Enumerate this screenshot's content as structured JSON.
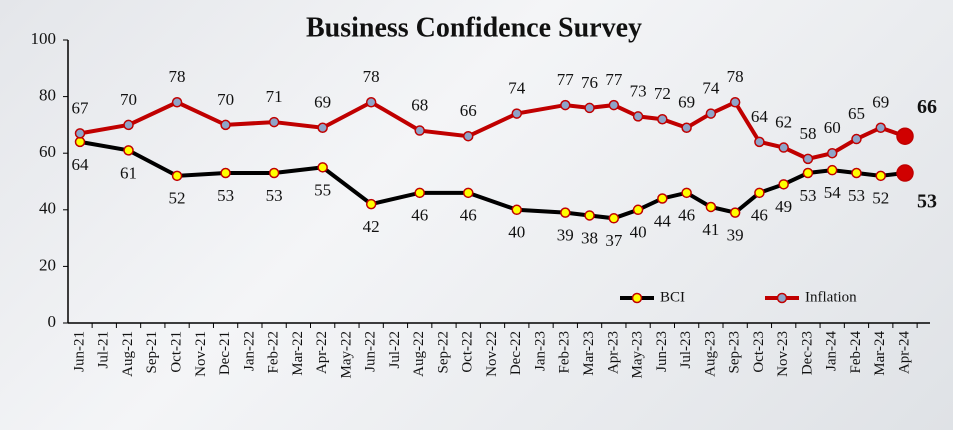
{
  "chart_data": {
    "type": "line",
    "title": "Business Confidence Survey",
    "xticks": [
      "Jun-21",
      "Jul-21",
      "Aug-21",
      "Sep-21",
      "Oct-21",
      "Nov-21",
      "Dec-21",
      "Jan-22",
      "Feb-22",
      "Mar-22",
      "Apr-22",
      "May-22",
      "Jun-22",
      "Jul-22",
      "Aug-22",
      "Sep-22",
      "Oct-22",
      "Nov-22",
      "Dec-22",
      "Jan-23",
      "Feb-23",
      "Mar-23",
      "Apr-23",
      "May-23",
      "Jun-23",
      "Jul-23",
      "Aug-23",
      "Sep-23",
      "Oct-23",
      "Nov-23",
      "Dec-23",
      "Jan-24",
      "Feb-24",
      "Mar-24",
      "Apr-24"
    ],
    "x": [
      "Jun-21",
      "Aug-21",
      "Oct-21",
      "Dec-21",
      "Feb-22",
      "Apr-22",
      "Jun-22",
      "Aug-22",
      "Oct-22",
      "Dec-22",
      "Feb-23",
      "Mar-23",
      "Apr-23",
      "May-23",
      "Jun-23",
      "Jul-23",
      "Aug-23",
      "Sep-23",
      "Oct-23",
      "Nov-23",
      "Dec-23",
      "Jan-24",
      "Feb-24",
      "Mar-24",
      "Apr-24"
    ],
    "series": [
      {
        "name": "BCI",
        "color": "#000000",
        "marker_color": "#ffff00",
        "values": [
          64,
          61,
          52,
          53,
          53,
          55,
          42,
          46,
          46,
          40,
          39,
          38,
          37,
          40,
          44,
          46,
          41,
          39,
          46,
          49,
          53,
          54,
          53,
          52,
          53
        ]
      },
      {
        "name": "Inflation",
        "color": "#c00000",
        "marker_color": "#8ea4c8",
        "values": [
          67,
          70,
          78,
          70,
          71,
          69,
          78,
          68,
          66,
          74,
          77,
          76,
          77,
          73,
          72,
          69,
          74,
          78,
          64,
          62,
          58,
          60,
          65,
          69,
          66
        ]
      }
    ],
    "ylim": [
      0,
      100
    ],
    "yticks": [
      0,
      20,
      40,
      60,
      80,
      100
    ],
    "grid": false
  }
}
